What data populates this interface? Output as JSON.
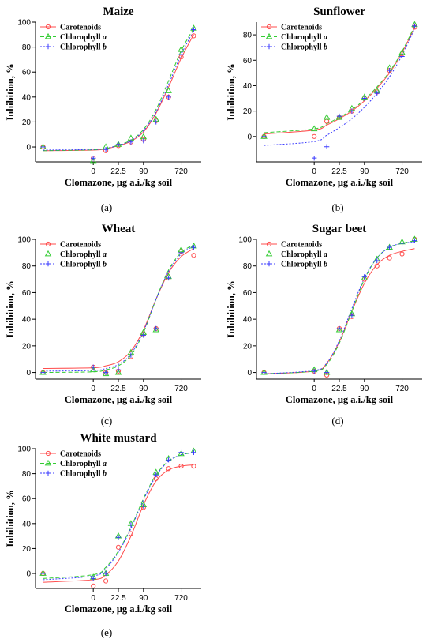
{
  "colors": {
    "carotenoids": "#ff4d4d",
    "chlorophyll_a": "#33cc33",
    "chlorophyll_b": "#3a3aff"
  },
  "chart_data": [
    {
      "type": "scatter",
      "title": "Maize",
      "caption": "(a)",
      "xlabel": "Clomazone, μg a.i./kg soil",
      "ylabel": "Inhibition, %",
      "x_ticks": [
        "0",
        "22.5",
        "90",
        "720"
      ],
      "y_ticks": [
        0,
        20,
        40,
        60,
        80,
        100
      ],
      "ylim": [
        -12,
        100
      ],
      "legend_placement": "top-left",
      "legend": [
        "Carotenoids",
        "Chlorophyll a",
        "Chlorophyll b"
      ],
      "x_positions": [
        -2,
        0,
        0.5,
        1,
        1.5,
        2,
        2.5,
        3,
        3.5,
        4
      ],
      "series": [
        {
          "name": "Carotenoids",
          "values": [
            0,
            -9,
            -3,
            1,
            4,
            6,
            21,
            40,
            72,
            89
          ],
          "curve": [
            -3,
            -2.5,
            -1.5,
            1,
            4.5,
            12,
            27,
            48,
            71,
            90
          ]
        },
        {
          "name": "Chlorophyll a",
          "values": [
            0,
            -11,
            0,
            2,
            7,
            8,
            22,
            45,
            78,
            95
          ],
          "curve": [
            -3,
            -2.3,
            -1.2,
            1.5,
            5.5,
            14,
            30,
            53,
            77,
            95
          ]
        },
        {
          "name": "Chlorophyll b",
          "values": [
            0,
            -9,
            -2,
            2,
            4,
            5,
            20,
            40,
            74,
            94
          ],
          "curve": [
            -2.5,
            -2,
            -1,
            1.2,
            5,
            13,
            28,
            50,
            74,
            93
          ]
        }
      ]
    },
    {
      "type": "scatter",
      "title": "Sunflower",
      "caption": "(b)",
      "xlabel": "Clomazone, μg a.i./kg soil",
      "ylabel": "Inhibition, %",
      "x_ticks": [
        "0",
        "22.5",
        "90",
        "720"
      ],
      "y_ticks": [
        0,
        20,
        40,
        60,
        80
      ],
      "ylim": [
        -20,
        90
      ],
      "legend_placement": "top-left",
      "legend": [
        "Carotenoids",
        "Chlorophyll a",
        "Chlorophyll b"
      ],
      "x_positions": [
        -2,
        0,
        0.5,
        1,
        1.5,
        2,
        2.5,
        3,
        3.5,
        4
      ],
      "series": [
        {
          "name": "Carotenoids",
          "values": [
            0,
            0,
            12,
            15,
            20,
            30,
            35,
            52,
            65,
            86
          ],
          "curve": [
            2,
            5,
            9,
            14,
            20,
            28,
            38,
            50,
            66,
            86
          ]
        },
        {
          "name": "Chlorophyll a",
          "values": [
            0,
            6,
            15,
            15,
            22,
            31,
            36,
            54,
            66,
            88
          ],
          "curve": [
            3,
            6,
            10,
            15,
            21,
            29,
            39,
            51,
            67,
            87
          ]
        },
        {
          "name": "Chlorophyll b",
          "values": [
            0,
            -17,
            -8,
            16,
            20,
            30,
            34,
            52,
            63,
            87
          ],
          "curve": [
            -7,
            -4,
            1,
            7,
            14,
            23,
            34,
            47,
            64,
            85
          ]
        }
      ]
    },
    {
      "type": "scatter",
      "title": "Wheat",
      "caption": "(c)",
      "xlabel": "Clomazone, μg a.i./kg soil",
      "ylabel": "Inhibition, %",
      "x_ticks": [
        "0",
        "22.5",
        "90",
        "720"
      ],
      "y_ticks": [
        0,
        20,
        40,
        60,
        80,
        100
      ],
      "ylim": [
        -5,
        100
      ],
      "legend_placement": "top-left",
      "legend": [
        "Carotenoids",
        "Chlorophyll a",
        "Chlorophyll b"
      ],
      "x_positions": [
        -2,
        0,
        0.5,
        1,
        1.5,
        2,
        2.5,
        3,
        3.5,
        4
      ],
      "series": [
        {
          "name": "Carotenoids",
          "values": [
            0,
            4,
            0,
            1,
            12,
            29,
            33,
            71,
            91,
            88
          ],
          "curve": [
            3,
            3.5,
            5,
            8,
            16,
            32,
            55,
            75,
            87,
            93
          ]
        },
        {
          "name": "Chlorophyll a",
          "values": [
            0,
            2,
            -1,
            0,
            15,
            30,
            32,
            72,
            92,
            95
          ],
          "curve": [
            0,
            0.5,
            2,
            5,
            13,
            30,
            55,
            77,
            90,
            96
          ]
        },
        {
          "name": "Chlorophyll b",
          "values": [
            0,
            4,
            0,
            2,
            13,
            28,
            33,
            71,
            90,
            94
          ],
          "curve": [
            1,
            1.5,
            3,
            6,
            14,
            31,
            55,
            76,
            89,
            95
          ]
        }
      ]
    },
    {
      "type": "scatter",
      "title": "Sugar beet",
      "caption": "(d)",
      "xlabel": "Clomazone, μg a.i./kg soil",
      "ylabel": "Inhibition, %",
      "x_ticks": [
        "0",
        "22.5",
        "90",
        "720"
      ],
      "y_ticks": [
        0,
        20,
        40,
        60,
        80,
        100
      ],
      "ylim": [
        -5,
        100
      ],
      "legend_placement": "top-left",
      "legend": [
        "Carotenoids",
        "Chlorophyll a",
        "Chlorophyll b"
      ],
      "x_positions": [
        -2,
        0,
        0.5,
        1,
        1.5,
        2,
        2.5,
        3,
        3.5,
        4
      ],
      "series": [
        {
          "name": "Carotenoids",
          "values": [
            0,
            1,
            -2,
            33,
            42,
            70,
            80,
            86,
            89,
            100
          ],
          "curve": [
            -1,
            1,
            7,
            23,
            46,
            67,
            81,
            88,
            91,
            93
          ]
        },
        {
          "name": "Chlorophyll a",
          "values": [
            0,
            2,
            0,
            32,
            44,
            71,
            85,
            94,
            98,
            100
          ],
          "curve": [
            -1,
            1,
            6,
            22,
            46,
            70,
            86,
            94,
            97,
            99
          ]
        },
        {
          "name": "Chlorophyll b",
          "values": [
            0,
            1,
            0,
            33,
            43,
            72,
            84,
            94,
            97,
            99
          ],
          "curve": [
            -1,
            1.5,
            7,
            24,
            48,
            71,
            86,
            94,
            97,
            98
          ]
        }
      ]
    },
    {
      "type": "scatter",
      "title": "White mustard",
      "caption": "(e)",
      "xlabel": "Clomazone, μg a.i./kg soil",
      "ylabel": "Inhibition, %",
      "x_ticks": [
        "0",
        "22.5",
        "90",
        "720"
      ],
      "y_ticks": [
        0,
        20,
        40,
        60,
        80,
        100
      ],
      "ylim": [
        -12,
        100
      ],
      "legend_placement": "top-left",
      "legend": [
        "Carotenoids",
        "Chlorophyll a",
        "Chlorophyll b"
      ],
      "x_positions": [
        -2,
        0,
        0.5,
        1,
        1.5,
        2,
        2.5,
        3,
        3.5,
        4
      ],
      "series": [
        {
          "name": "Carotenoids",
          "values": [
            0,
            -10,
            -6,
            21,
            32,
            53,
            76,
            84,
            86,
            86
          ],
          "curve": [
            -7,
            -5,
            -1,
            10,
            30,
            55,
            74,
            83,
            86,
            87
          ]
        },
        {
          "name": "Chlorophyll a",
          "values": [
            0,
            -3,
            0,
            30,
            40,
            55,
            81,
            92,
            96,
            98
          ],
          "curve": [
            -4,
            -1,
            5,
            18,
            37,
            60,
            79,
            90,
            95,
            97
          ]
        },
        {
          "name": "Chlorophyll b",
          "values": [
            0,
            -4,
            0,
            29,
            39,
            54,
            79,
            91,
            97,
            97
          ],
          "curve": [
            -5,
            -2,
            4,
            17,
            36,
            59,
            78,
            90,
            95,
            97
          ]
        }
      ]
    }
  ]
}
